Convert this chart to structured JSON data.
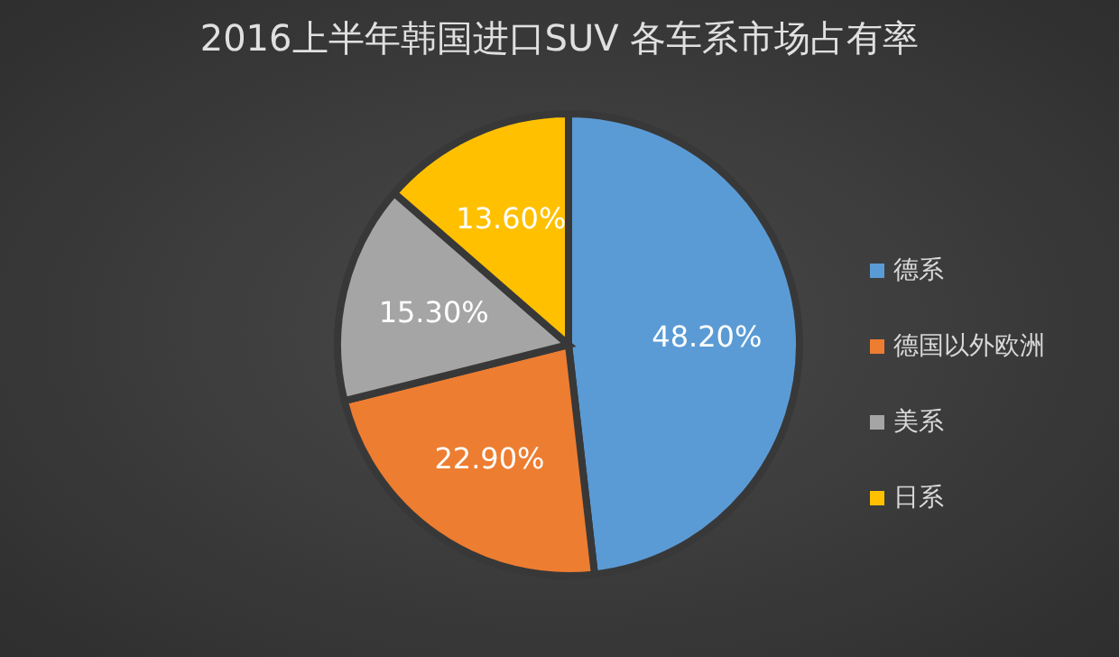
{
  "chart_data": {
    "type": "pie",
    "title": "2016上半年韩国进口SUV 各车系市场占有率",
    "categories": [
      "德系",
      "德国以外欧洲",
      "美系",
      "日系"
    ],
    "values": [
      48.2,
      22.9,
      15.3,
      13.6
    ],
    "colors": [
      "#5b9bd5",
      "#ed7d31",
      "#a5a5a5",
      "#ffc000"
    ],
    "value_labels": [
      "48.20%",
      "22.90%",
      "15.30%",
      "13.60%"
    ],
    "legend": "right"
  }
}
